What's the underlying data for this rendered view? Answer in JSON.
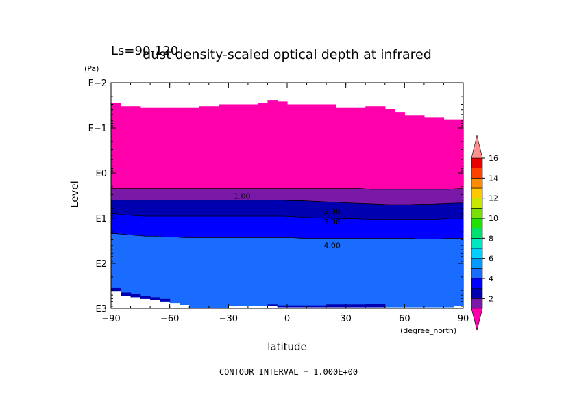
{
  "chart_data": {
    "type": "heatmap",
    "title": "dust density-scaled optical depth at infrared",
    "subtitle": "Ls=90-120",
    "xlabel": "latitude",
    "x_unit": "(degree_north)",
    "ylabel": "Level",
    "y_unit": "(Pa)",
    "xlim": [
      -90,
      90
    ],
    "ylim": [
      0.01,
      1000
    ],
    "y_scale": "log",
    "y_reversed": true,
    "x_ticks": [
      -90,
      -60,
      -30,
      0,
      30,
      60,
      90
    ],
    "x_tick_labels": [
      "−90",
      "−60",
      "−30",
      "0",
      "30",
      "60",
      "90"
    ],
    "y_ticks": [
      0.01,
      0.1,
      1,
      10,
      100,
      1000
    ],
    "y_tick_labels": [
      "E−2",
      "E−1",
      "E0",
      "E1",
      "E2",
      "E3"
    ],
    "contour_interval": "CONTOUR INTERVAL = 1.000E+00",
    "contour_labels": [
      {
        "text": "1.00",
        "lat": -23,
        "level": 3.2
      },
      {
        "text": "2.00",
        "lat": 23,
        "level": 7.0
      },
      {
        "text": "3.00",
        "lat": 23,
        "level": 12.0
      },
      {
        "text": "4.00",
        "lat": 23,
        "level": 40.0
      }
    ],
    "data_top": {
      "lat": [
        -87.5,
        -82.5,
        -77.5,
        -72.5,
        -67.5,
        -62.5,
        -57.5,
        -52.5,
        -47.5,
        -42.5,
        -37.5,
        -32.5,
        -27.5,
        -22.5,
        -17.5,
        -12.5,
        -7.5,
        -2.5,
        2.5,
        7.5,
        12.5,
        17.5,
        22.5,
        27.5,
        32.5,
        37.5,
        42.5,
        47.5,
        52.5,
        57.5,
        62.5,
        67.5,
        72.5,
        77.5,
        82.5,
        87.5
      ],
      "level": [
        0.028,
        0.033,
        0.033,
        0.036,
        0.036,
        0.036,
        0.036,
        0.036,
        0.036,
        0.033,
        0.033,
        0.03,
        0.03,
        0.03,
        0.03,
        0.028,
        0.024,
        0.026,
        0.03,
        0.03,
        0.03,
        0.03,
        0.03,
        0.036,
        0.036,
        0.036,
        0.033,
        0.033,
        0.039,
        0.045,
        0.052,
        0.052,
        0.058,
        0.058,
        0.065,
        0.065
      ]
    },
    "data_bottom": {
      "lat": [
        -87.5,
        -82.5,
        -77.5,
        -72.5,
        -67.5,
        -62.5,
        -57.5,
        -52.5,
        -47.5,
        -42.5,
        -37.5,
        -32.5,
        -27.5,
        -22.5,
        -17.5,
        -12.5,
        -7.5,
        -2.5,
        2.5,
        7.5,
        12.5,
        17.5,
        22.5,
        27.5,
        32.5,
        37.5,
        42.5,
        47.5,
        52.5,
        57.5,
        62.5,
        67.5,
        72.5,
        77.5,
        82.5,
        87.5
      ],
      "level": [
        420,
        520,
        560,
        610,
        650,
        700,
        760,
        840,
        1250,
        1250,
        1300,
        1100,
        900,
        900,
        900,
        900,
        900,
        950,
        950,
        950,
        950,
        950,
        950,
        950,
        950,
        950,
        950,
        950,
        950,
        950,
        950,
        950,
        950,
        950,
        950,
        900
      ]
    },
    "contours": [
      {
        "value": 1,
        "level": [
          2.2,
          2.2,
          2.2,
          2.2,
          2.2,
          2.2,
          2.2,
          2.2,
          2.2,
          2.2,
          2.2,
          2.2,
          2.2,
          2.2,
          2.2,
          2.2,
          2.2,
          2.2,
          2.2,
          2.2,
          2.2,
          2.2,
          2.2,
          2.2,
          2.2,
          2.2,
          2.3,
          2.3,
          2.3,
          2.3,
          2.3,
          2.3,
          2.3,
          2.3,
          2.3,
          2.2
        ]
      },
      {
        "value": 2,
        "level": [
          4.0,
          4.0,
          4.0,
          4.0,
          4.0,
          4.0,
          4.0,
          4.0,
          4.0,
          4.0,
          4.0,
          4.0,
          4.0,
          4.0,
          4.0,
          4.0,
          4.0,
          4.0,
          4.1,
          4.1,
          4.2,
          4.3,
          4.4,
          4.5,
          4.6,
          4.7,
          4.8,
          4.9,
          5.0,
          5.0,
          5.0,
          4.9,
          4.9,
          4.8,
          4.7,
          4.6
        ]
      },
      {
        "value": 3,
        "level": [
          8.0,
          8.5,
          8.8,
          9.0,
          9.0,
          9.0,
          9.0,
          9.0,
          9.0,
          9.0,
          9.0,
          9.0,
          9.0,
          9.0,
          9.0,
          9.0,
          9.0,
          9.0,
          9.2,
          9.5,
          9.7,
          9.9,
          10.0,
          10.1,
          10.2,
          10.3,
          10.5,
          10.5,
          10.5,
          10.5,
          10.5,
          10.5,
          10.5,
          10.5,
          10.0,
          10.0
        ]
      },
      {
        "value": 4,
        "level": [
          22,
          23,
          24,
          25,
          25,
          26,
          26,
          27,
          27,
          27,
          27,
          27,
          27,
          27,
          27,
          27,
          27,
          27,
          27,
          28,
          28,
          28,
          28,
          28,
          28,
          28,
          28,
          28,
          28,
          28,
          28,
          29,
          29,
          29,
          28,
          28
        ]
      }
    ],
    "bottom_bands": [
      {
        "value": 3,
        "lat": [
          -87.5,
          -82.5,
          -77.5,
          -72.5,
          -67.5,
          -62.5
        ],
        "level": [
          350,
          440,
          480,
          520,
          560,
          610
        ]
      },
      {
        "value": 3,
        "lat": [
          -7.5,
          -2.5,
          2.5,
          7.5,
          12.5,
          17.5,
          22.5,
          27.5,
          32.5,
          37.5,
          42.5,
          47.5
        ],
        "level": [
          820,
          860,
          860,
          860,
          860,
          860,
          820,
          820,
          820,
          820,
          800,
          800
        ]
      }
    ],
    "colorbar": {
      "levels": [
        0,
        1,
        2,
        3,
        4,
        5,
        6,
        7,
        8,
        9,
        10,
        11,
        12,
        13,
        14,
        15,
        16,
        17
      ],
      "tick_labels": [
        "2",
        "4",
        "6",
        "8",
        "10",
        "12",
        "14",
        "16"
      ],
      "tick_values": [
        2,
        4,
        6,
        8,
        10,
        12,
        14,
        16
      ],
      "colors": [
        "#ff00aa",
        "#7a18a8",
        "#0000b0",
        "#0000ff",
        "#1a6cff",
        "#0099ff",
        "#00d0ff",
        "#00e8c0",
        "#00e070",
        "#22e000",
        "#7ae000",
        "#c8e600",
        "#ffc800",
        "#ff8c00",
        "#ff4000",
        "#e80000",
        "#ff9090"
      ]
    }
  }
}
